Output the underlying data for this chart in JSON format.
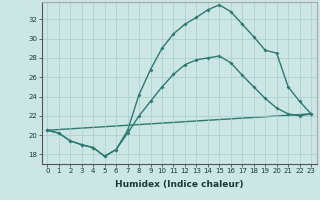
{
  "title": "",
  "xlabel": "Humidex (Indice chaleur)",
  "ylabel": "",
  "background_color": "#cce5e5",
  "line_color": "#2d7a6e",
  "xlim": [
    -0.5,
    23.5
  ],
  "ylim": [
    17.0,
    33.8
  ],
  "yticks": [
    18,
    20,
    22,
    24,
    26,
    28,
    30,
    32
  ],
  "xticks": [
    0,
    1,
    2,
    3,
    4,
    5,
    6,
    7,
    8,
    9,
    10,
    11,
    12,
    13,
    14,
    15,
    16,
    17,
    18,
    19,
    20,
    21,
    22,
    23
  ],
  "line1_x": [
    0,
    1,
    2,
    3,
    4,
    5,
    6,
    7,
    8,
    9,
    10,
    11,
    12,
    13,
    14,
    15,
    16,
    17,
    18,
    19,
    20,
    21,
    22,
    23
  ],
  "line1_y": [
    20.5,
    20.2,
    19.4,
    19.0,
    18.7,
    17.8,
    18.5,
    20.2,
    22.0,
    23.5,
    25.0,
    26.3,
    27.3,
    27.8,
    28.0,
    28.2,
    27.5,
    26.2,
    25.0,
    23.8,
    22.8,
    22.2,
    22.0,
    22.2
  ],
  "line2_x": [
    0,
    1,
    2,
    3,
    4,
    5,
    6,
    7,
    8,
    9,
    10,
    11,
    12,
    13,
    14,
    15,
    16,
    17,
    18,
    19,
    20,
    21,
    22,
    23
  ],
  "line2_y": [
    20.5,
    20.2,
    19.4,
    19.0,
    18.7,
    17.8,
    18.5,
    20.5,
    24.2,
    26.8,
    29.0,
    30.5,
    31.5,
    32.2,
    33.0,
    33.5,
    32.8,
    31.5,
    30.2,
    28.8,
    28.5,
    25.0,
    23.5,
    22.2
  ],
  "line3_x": [
    0,
    23
  ],
  "line3_y": [
    20.5,
    22.2
  ],
  "marker_size": 2.0,
  "linewidth": 1.0,
  "grid_color": "#aacccc",
  "label_fontsize": 6.5,
  "tick_fontsize": 5.0
}
